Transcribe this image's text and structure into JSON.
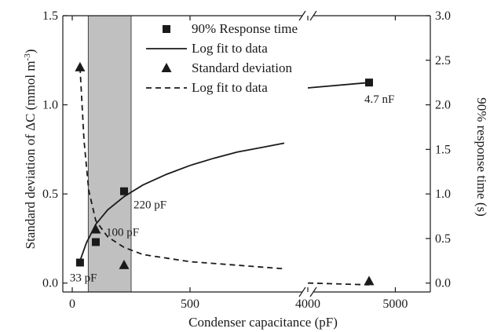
{
  "chart_data": {
    "type": "scatter",
    "xlabel": "Condenser capacitance (pF)",
    "ylabel_left": "Standard deviation of ΔC (mmol m",
    "ylabel_left_sup": "-3",
    "ylabel_left_close": ")",
    "ylabel_right": "90% response time (s)",
    "x_segments": [
      {
        "min": -40,
        "max": 1000,
        "ticks": [
          {
            "value": 0,
            "label": "0"
          },
          {
            "value": 500,
            "label": "500"
          }
        ]
      },
      {
        "min": 4000,
        "max": 5400,
        "ticks": [
          {
            "value": 4000,
            "label": "4000"
          },
          {
            "value": 5000,
            "label": "5000"
          }
        ]
      }
    ],
    "ylim_left": [
      -0.05,
      1.5
    ],
    "ylim_right": [
      -0.1,
      3.0
    ],
    "yticks_left": [
      "0.0",
      "0.5",
      "1.0",
      "1.5"
    ],
    "yticks_right": [
      "0.0",
      "0.5",
      "1.0",
      "1.5",
      "2.0",
      "2.5",
      "3.0"
    ],
    "shaded_band": {
      "x": [
        68,
        250
      ]
    },
    "series": [
      {
        "name": "90% Response time",
        "kind": "markers",
        "marker": "square",
        "axis": "right",
        "points": [
          {
            "x": 33,
            "y": 0.23
          },
          {
            "x": 100,
            "y": 0.46
          },
          {
            "x": 220,
            "y": 1.03
          },
          {
            "x": 4700,
            "y": 2.25
          }
        ]
      },
      {
        "name": "Log fit to data",
        "kind": "line",
        "style": "solid",
        "axis": "right",
        "points": [
          {
            "x": 33,
            "y": 0.25
          },
          {
            "x": 60,
            "y": 0.45
          },
          {
            "x": 100,
            "y": 0.66
          },
          {
            "x": 150,
            "y": 0.82
          },
          {
            "x": 220,
            "y": 0.97
          },
          {
            "x": 300,
            "y": 1.1
          },
          {
            "x": 400,
            "y": 1.22
          },
          {
            "x": 500,
            "y": 1.32
          },
          {
            "x": 600,
            "y": 1.4
          },
          {
            "x": 700,
            "y": 1.47
          },
          {
            "x": 800,
            "y": 1.52
          },
          {
            "x": 900,
            "y": 1.57
          },
          {
            "x": 4000,
            "y": 2.19
          },
          {
            "x": 4700,
            "y": 2.25
          }
        ]
      },
      {
        "name": "Standard deviation",
        "kind": "markers",
        "marker": "triangle",
        "axis": "left",
        "points": [
          {
            "x": 33,
            "y": 1.21
          },
          {
            "x": 100,
            "y": 0.3
          },
          {
            "x": 220,
            "y": 0.1
          },
          {
            "x": 4700,
            "y": 0.01
          }
        ]
      },
      {
        "name": "Log fit to data",
        "kind": "line",
        "style": "dashed",
        "axis": "left",
        "points": [
          {
            "x": 33,
            "y": 1.21
          },
          {
            "x": 50,
            "y": 0.8
          },
          {
            "x": 70,
            "y": 0.52
          },
          {
            "x": 100,
            "y": 0.35
          },
          {
            "x": 150,
            "y": 0.26
          },
          {
            "x": 220,
            "y": 0.2
          },
          {
            "x": 300,
            "y": 0.16
          },
          {
            "x": 500,
            "y": 0.12
          },
          {
            "x": 700,
            "y": 0.1
          },
          {
            "x": 900,
            "y": 0.08
          },
          {
            "x": 4000,
            "y": 0.0
          },
          {
            "x": 4700,
            "y": -0.01
          }
        ]
      }
    ],
    "annotations": [
      {
        "text": "33 pF",
        "x": 33,
        "y": 0.23,
        "axis": "right",
        "dx": -13,
        "dy": 24
      },
      {
        "text": "100 pF",
        "x": 100,
        "y": 0.46,
        "axis": "right",
        "dx": 13,
        "dy": -8
      },
      {
        "text": "220 pF",
        "x": 220,
        "y": 1.03,
        "axis": "right",
        "dx": 12,
        "dy": 22
      },
      {
        "text": "4.7 nF",
        "x": 4700,
        "y": 2.25,
        "axis": "right",
        "dx": -6,
        "dy": 26
      }
    ],
    "legend": {
      "position": "top-center",
      "items": [
        {
          "label": "90% Response time",
          "symbol": "square"
        },
        {
          "label": "Log fit to data",
          "symbol": "solid-line"
        },
        {
          "label": "Standard deviation",
          "symbol": "triangle"
        },
        {
          "label": "Log fit to data",
          "symbol": "dashed-line"
        }
      ]
    },
    "colors": {
      "ink": "#1a1a1a",
      "band": "#c0c0c0",
      "band_edge": "#444444"
    }
  }
}
